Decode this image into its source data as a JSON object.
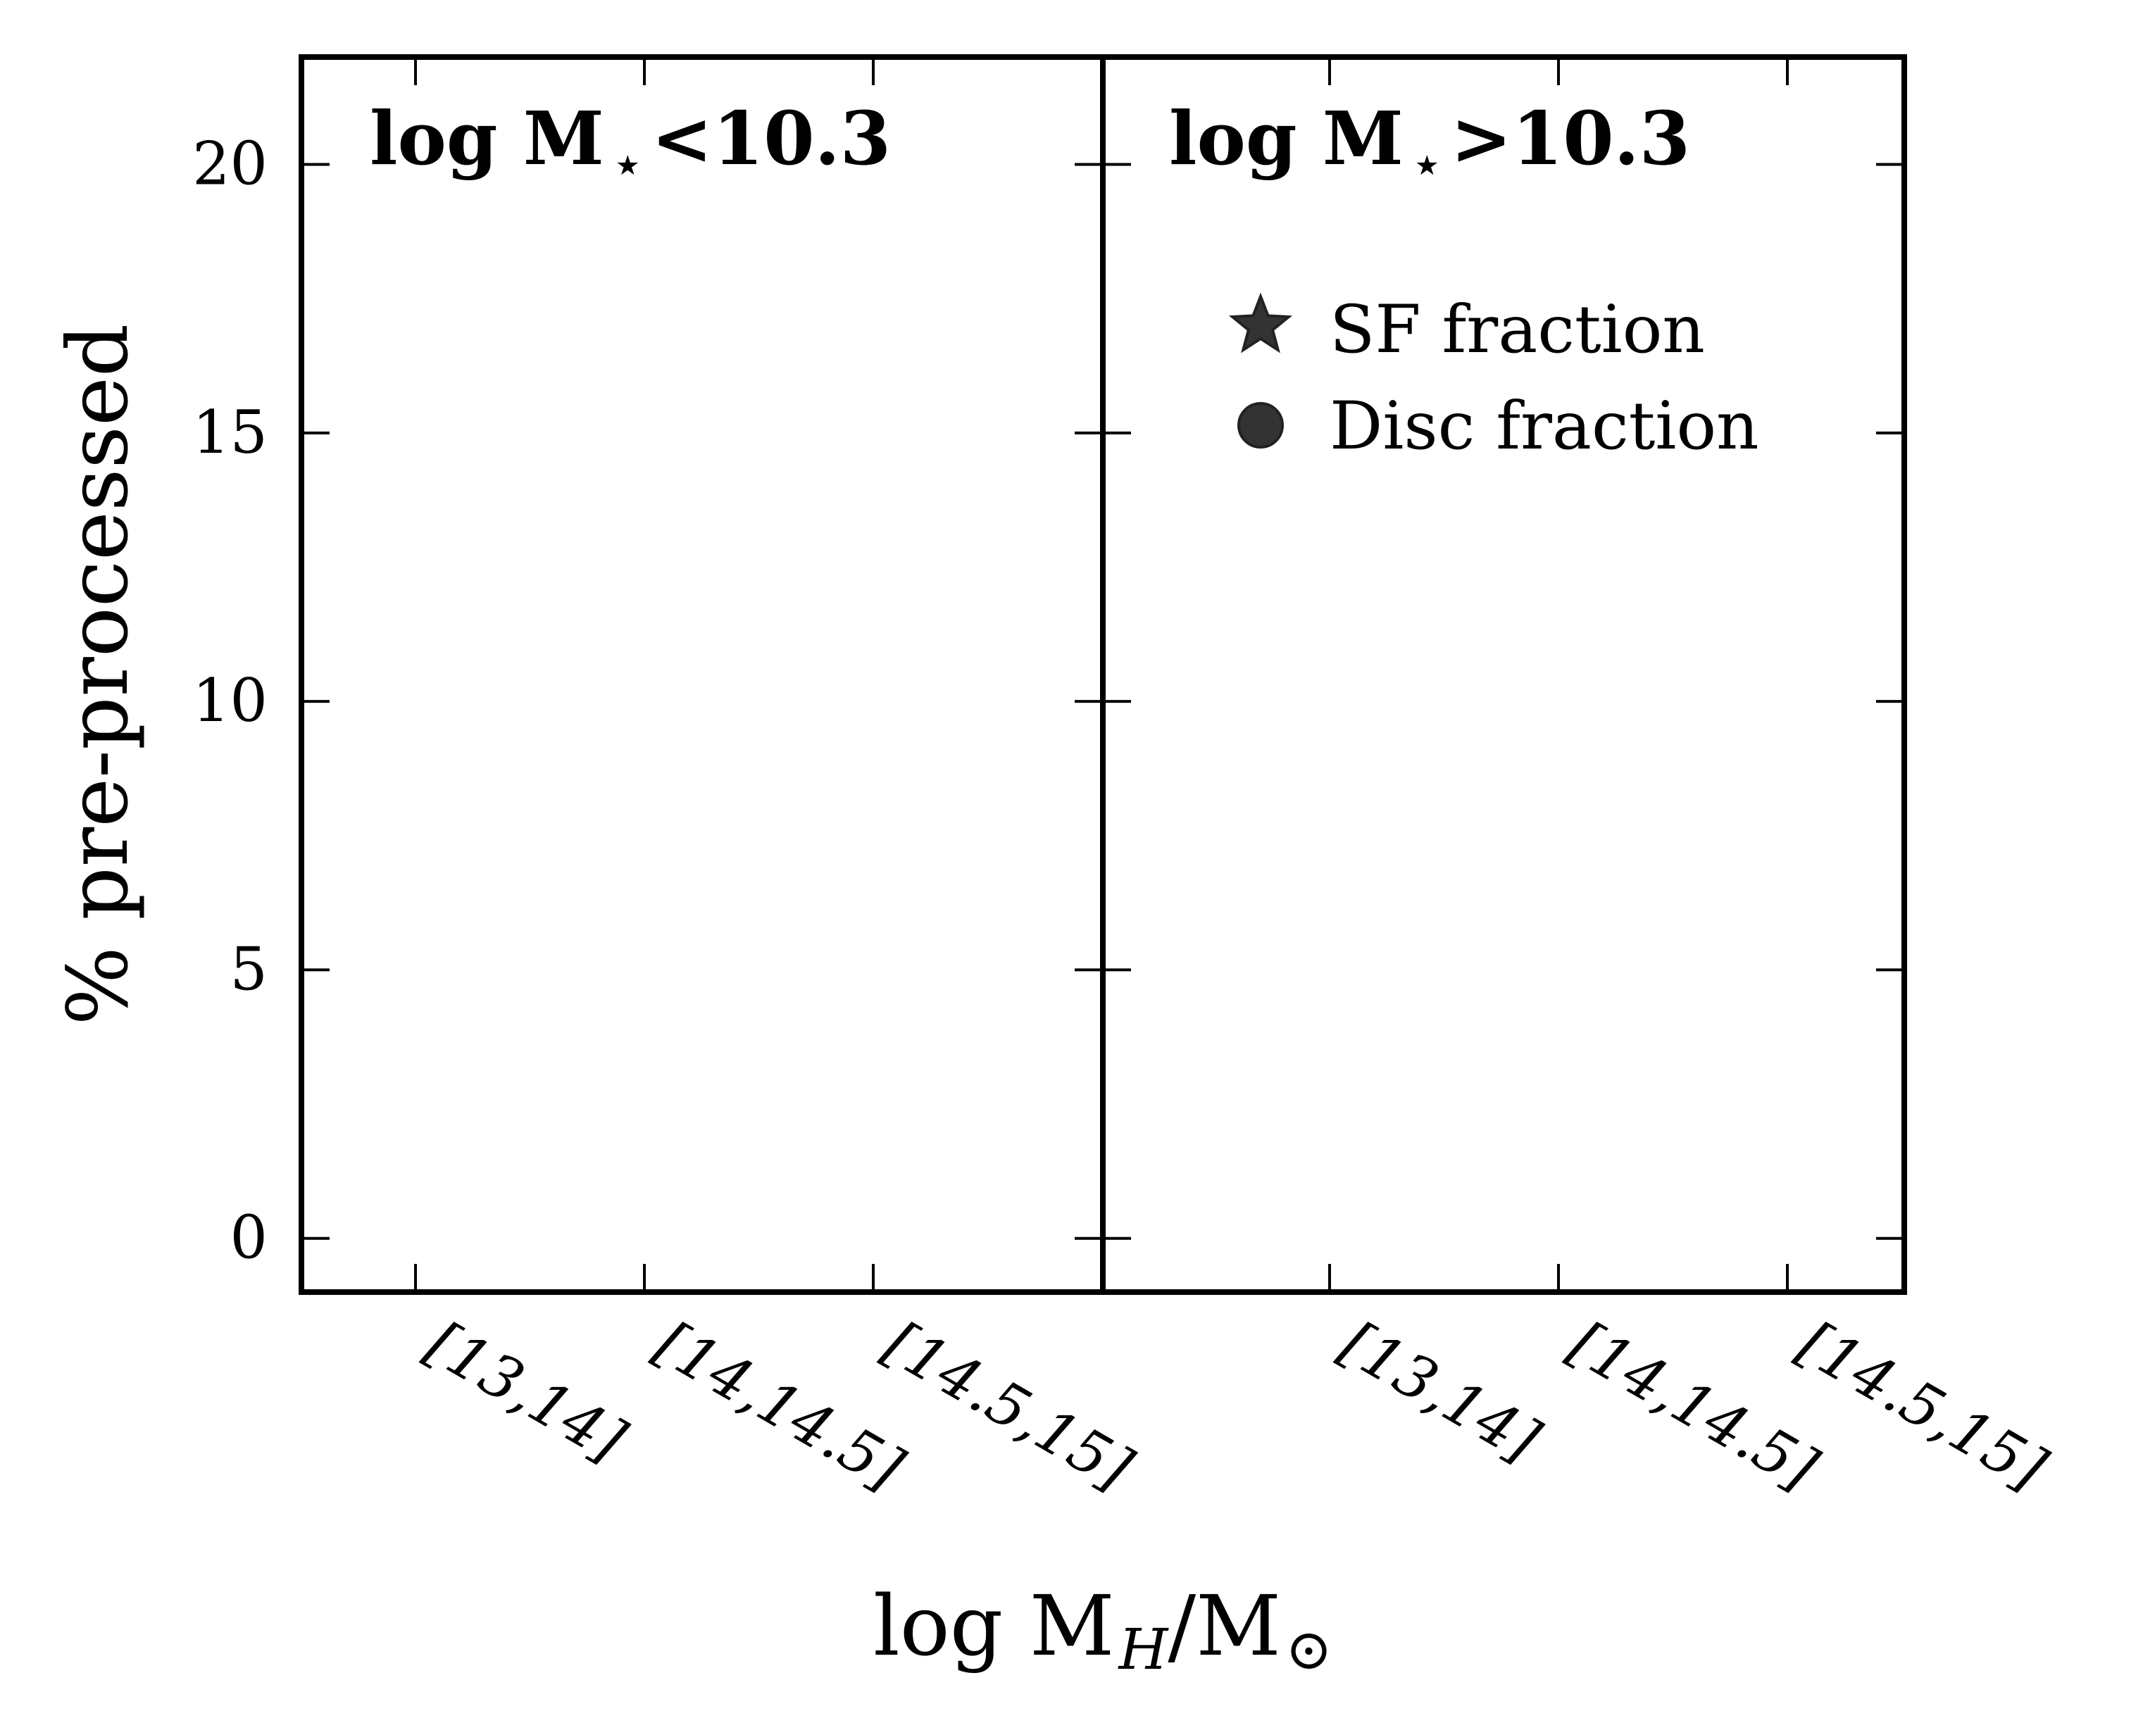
{
  "chart_data": [
    {
      "type": "scatter",
      "panel_label_parts": [
        "log M",
        "⋆",
        "<10.3"
      ],
      "categories": [
        "[13,14]",
        "[14,14.5]",
        "[14.5,15]"
      ],
      "series": [
        {
          "name": "SF fraction",
          "marker": "star",
          "values": []
        },
        {
          "name": "Disc fraction",
          "marker": "circle",
          "values": []
        }
      ],
      "ylabel": "% pre-processed",
      "ylim": [
        -1,
        22
      ],
      "yticks": [
        "0",
        "5",
        "10",
        "15",
        "20"
      ]
    },
    {
      "type": "scatter",
      "panel_label_parts": [
        "log M",
        "⋆",
        ">10.3"
      ],
      "categories": [
        "[13,14]",
        "[14,14.5]",
        "[14.5,15]"
      ],
      "series": [
        {
          "name": "SF fraction",
          "marker": "star",
          "values": []
        },
        {
          "name": "Disc fraction",
          "marker": "circle",
          "values": []
        }
      ],
      "ylim": [
        -1,
        22
      ],
      "yticks": [
        "0",
        "5",
        "10",
        "15",
        "20"
      ]
    }
  ],
  "xlabel_parts": [
    "log M",
    "H",
    "/M",
    "⊙"
  ],
  "legend": {
    "placement": "upper-right of right panel",
    "entries": [
      {
        "label": "SF fraction",
        "marker": "star"
      },
      {
        "label": "Disc fraction",
        "marker": "circle"
      }
    ]
  },
  "colors": {
    "marker_fill": "#333333",
    "marker_edge": "#222222",
    "axes": "#000000"
  }
}
